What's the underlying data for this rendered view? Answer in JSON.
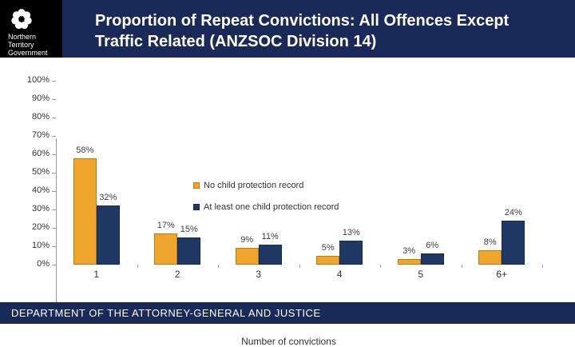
{
  "slide": {
    "title_lines": [
      "Proportion of Repeat Convictions: All Offences Except",
      "Traffic Related (ANZSOC Division 14)"
    ],
    "logo_lines": [
      "Northern",
      "Territory",
      "Government"
    ],
    "footer": "DEPARTMENT OF THE ATTORNEY-GENERAL AND JUSTICE"
  },
  "colors": {
    "header_footer_navy": "#1A2A58",
    "logo_black": "#000000",
    "axis_gray": "#9A9A9A",
    "chart_text": "#333333"
  },
  "chart_data": {
    "type": "bar",
    "title": "",
    "categories": [
      "1",
      "2",
      "3",
      "4",
      "5",
      "6+"
    ],
    "series": [
      {
        "name": "No child protection record",
        "color": "#F0A62C",
        "border_color": "#B47D14",
        "values": [
          58,
          17,
          9,
          5,
          3,
          8
        ]
      },
      {
        "name": "At least one child protection record",
        "color": "#1F3864",
        "border_color": "#16294C",
        "values": [
          32,
          15,
          11,
          13,
          6,
          24
        ]
      }
    ],
    "xlabel": "Number of convictions",
    "ylabel": "",
    "ylim": [
      0,
      100
    ],
    "ytick_step": 10,
    "ytick_suffix": "%",
    "data_label_suffix": "%",
    "data_labels": true,
    "grid": false,
    "legend_position": "upper-center-vertical"
  }
}
